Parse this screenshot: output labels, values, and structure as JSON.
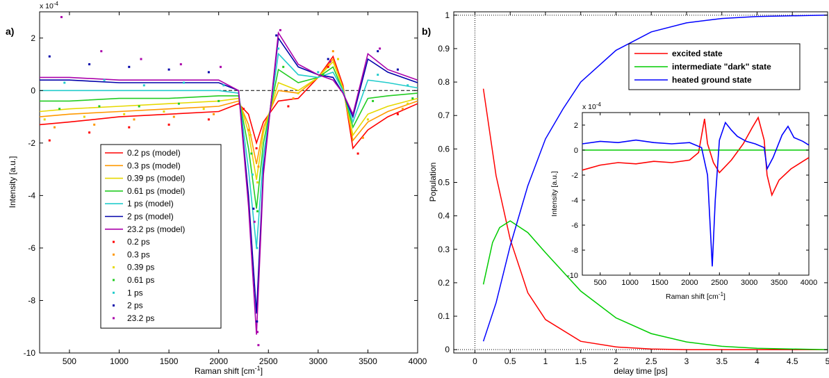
{
  "panel_a": {
    "label": "a)",
    "exponent": "x 10",
    "exponent_power": "-4",
    "xlabel": "Raman shift [cm",
    "xlabel_unit_sup": "-1",
    "xlabel_close": "]",
    "ylabel": "Intensity [a.u.]"
  },
  "panel_b": {
    "label": "b)",
    "xlabel": "delay time [ps]",
    "ylabel": "Population"
  },
  "inset": {
    "exponent": "x 10",
    "exponent_power": "-4",
    "xlabel": "Raman shift [cm",
    "xlabel_unit_sup": "-1",
    "xlabel_close": "]",
    "ylabel": "Intensity [a.u.]"
  },
  "colors": {
    "0.2": "#ff0000",
    "0.3": "#ff9900",
    "0.39": "#e6d800",
    "0.61": "#22cc22",
    "1": "#22cccc",
    "2": "#0000aa",
    "23.2": "#aa00aa",
    "excited": "#ff0000",
    "dark": "#00cc00",
    "ground": "#0000ff"
  },
  "chart_data": [
    {
      "type": "line",
      "panel": "a)",
      "xlabel": "Raman shift [cm-1]",
      "ylabel": "Intensity [a.u.]",
      "y_scale_note": "x 10^-4",
      "xlim": [
        200,
        4000
      ],
      "ylim": [
        -10,
        3
      ],
      "xticks": [
        "500",
        "1000",
        "1500",
        "2000",
        "2500",
        "3000",
        "3500",
        "4000"
      ],
      "yticks": [
        "-10",
        "-8",
        "-6",
        "-4",
        "-2",
        "0",
        "2"
      ],
      "legend_location": "center-left",
      "legend": [
        "0.2 ps (model)",
        "0.3 ps (model)",
        "0.39 ps (model)",
        "0.61 ps (model)",
        "1 ps (model)",
        "2 ps (model)",
        "23.2 ps (model)",
        "0.2 ps",
        "0.3 ps",
        "0.39 ps",
        "0.61 ps",
        "1 ps",
        "2 ps",
        "23.2 ps"
      ],
      "series": [
        {
          "name": "0.2 ps (model)",
          "color_key": "0.2",
          "x": [
            200,
            500,
            1000,
            1500,
            2000,
            2200,
            2300,
            2380,
            2450,
            2600,
            2800,
            3000,
            3150,
            3250,
            3350,
            3500,
            3700,
            4000
          ],
          "y": [
            -1.3,
            -1.2,
            -1.0,
            -0.9,
            -0.8,
            -0.5,
            -0.9,
            -2.0,
            -1.2,
            -0.4,
            -0.3,
            0.5,
            1.3,
            0.2,
            -2.2,
            -1.5,
            -1.0,
            -0.5
          ]
        },
        {
          "name": "0.3 ps (model)",
          "color_key": "0.3",
          "x": [
            200,
            500,
            1000,
            1500,
            2000,
            2200,
            2300,
            2380,
            2450,
            2600,
            2800,
            3000,
            3150,
            3250,
            3350,
            3500,
            3700,
            4000
          ],
          "y": [
            -1.0,
            -0.9,
            -0.8,
            -0.7,
            -0.6,
            -0.4,
            -1.3,
            -2.8,
            -1.4,
            0.0,
            -0.1,
            0.5,
            1.2,
            0.1,
            -1.9,
            -1.2,
            -0.8,
            -0.4
          ]
        },
        {
          "name": "0.39 ps (model)",
          "color_key": "0.39",
          "x": [
            200,
            500,
            1000,
            1500,
            2000,
            2200,
            2300,
            2380,
            2450,
            2600,
            2800,
            3000,
            3150,
            3250,
            3350,
            3500,
            3700,
            4000
          ],
          "y": [
            -0.8,
            -0.7,
            -0.6,
            -0.5,
            -0.4,
            -0.3,
            -1.6,
            -3.4,
            -1.6,
            0.3,
            0.0,
            0.5,
            1.1,
            0.1,
            -1.7,
            -0.9,
            -0.6,
            -0.3
          ]
        },
        {
          "name": "0.61 ps (model)",
          "color_key": "0.61",
          "x": [
            200,
            500,
            1000,
            1500,
            2000,
            2200,
            2300,
            2380,
            2450,
            2600,
            2800,
            3000,
            3150,
            3250,
            3350,
            3500,
            3700,
            4000
          ],
          "y": [
            -0.4,
            -0.4,
            -0.3,
            -0.3,
            -0.2,
            -0.2,
            -2.2,
            -4.5,
            -2.0,
            0.8,
            0.3,
            0.5,
            0.9,
            0.0,
            -1.4,
            -0.3,
            -0.2,
            -0.1
          ]
        },
        {
          "name": "1 ps (model)",
          "color_key": "1",
          "x": [
            200,
            500,
            1000,
            1500,
            2000,
            2200,
            2300,
            2380,
            2450,
            2600,
            2800,
            3000,
            3150,
            3250,
            3350,
            3500,
            3700,
            4000
          ],
          "y": [
            0.0,
            0.0,
            0.0,
            0.0,
            0.0,
            -0.1,
            -3.0,
            -6.0,
            -2.5,
            1.4,
            0.6,
            0.5,
            0.7,
            0.0,
            -1.2,
            0.4,
            0.3,
            0.1
          ]
        },
        {
          "name": "2 ps (model)",
          "color_key": "2",
          "x": [
            200,
            500,
            1000,
            1500,
            2000,
            2200,
            2300,
            2380,
            2450,
            2600,
            2800,
            3000,
            3150,
            3250,
            3350,
            3500,
            3700,
            4000
          ],
          "y": [
            0.4,
            0.4,
            0.3,
            0.3,
            0.3,
            0.0,
            -4.0,
            -8.5,
            -3.0,
            2.0,
            0.9,
            0.6,
            0.5,
            -0.1,
            -1.0,
            1.2,
            0.7,
            0.3
          ]
        },
        {
          "name": "23.2 ps (model)",
          "color_key": "23.2",
          "x": [
            200,
            500,
            1000,
            1500,
            2000,
            2200,
            2300,
            2380,
            2450,
            2600,
            2800,
            3000,
            3150,
            3250,
            3350,
            3500,
            3700,
            4000
          ],
          "y": [
            0.5,
            0.5,
            0.4,
            0.4,
            0.4,
            0.0,
            -4.4,
            -9.3,
            -3.2,
            2.2,
            1.0,
            0.6,
            0.4,
            -0.1,
            -0.9,
            1.4,
            0.8,
            0.4
          ]
        }
      ],
      "points": [
        {
          "name": "0.2 ps",
          "color_key": "0.2",
          "x": [
            300,
            700,
            1100,
            1500,
            1900,
            2250,
            2380,
            2700,
            3100,
            3400,
            3800
          ],
          "y": [
            -1.9,
            -1.6,
            -1.4,
            -1.3,
            -1.1,
            -0.7,
            -2.2,
            -0.6,
            0.9,
            -2.4,
            -0.9
          ]
        },
        {
          "name": "0.3 ps",
          "color_key": "0.3",
          "x": [
            350,
            750,
            1150,
            1550,
            1950,
            2300,
            2400,
            2750,
            3150,
            3450,
            3850
          ],
          "y": [
            -1.4,
            -1.3,
            -1.1,
            -1.0,
            -0.9,
            -1.5,
            -2.9,
            -0.3,
            1.5,
            -1.8,
            -0.7
          ]
        },
        {
          "name": "0.39 ps",
          "color_key": "0.39",
          "x": [
            250,
            650,
            1050,
            1450,
            1850,
            2320,
            2390,
            2800,
            3200,
            3500,
            3900
          ],
          "y": [
            -1.1,
            -1.0,
            -0.9,
            -0.8,
            -0.7,
            -1.7,
            -3.5,
            -0.1,
            1.2,
            -1.1,
            -0.5
          ]
        },
        {
          "name": "0.61 ps",
          "color_key": "0.61",
          "x": [
            400,
            800,
            1200,
            1600,
            2000,
            2330,
            2390,
            2650,
            3050,
            3550,
            3950
          ],
          "y": [
            -0.7,
            -0.6,
            -0.6,
            -0.5,
            -0.4,
            -2.4,
            -4.6,
            0.9,
            0.6,
            -0.4,
            -0.3
          ]
        },
        {
          "name": "1 ps",
          "color_key": "1",
          "x": [
            450,
            850,
            1250,
            1650,
            2050,
            2340,
            2385,
            2600,
            3000,
            3600,
            3900
          ],
          "y": [
            0.3,
            0.4,
            0.2,
            0.3,
            0.2,
            -3.2,
            -6.0,
            1.6,
            0.7,
            0.6,
            0.2
          ]
        },
        {
          "name": "2 ps",
          "color_key": "2",
          "x": [
            300,
            700,
            1100,
            1500,
            1900,
            2350,
            2385,
            2580,
            3100,
            3600,
            3800
          ],
          "y": [
            1.3,
            1.0,
            0.9,
            0.8,
            0.7,
            -4.5,
            -8.8,
            2.1,
            1.2,
            1.5,
            0.8
          ]
        },
        {
          "name": "23.2 ps",
          "color_key": "23.2",
          "x": [
            420,
            820,
            1220,
            1620,
            2020,
            2360,
            2390,
            2400,
            2620,
            3120,
            3620
          ],
          "y": [
            2.8,
            1.5,
            1.2,
            1.0,
            0.9,
            -5.0,
            -9.2,
            -9.7,
            2.3,
            1.1,
            1.6
          ]
        }
      ]
    },
    {
      "type": "line",
      "panel": "b)",
      "xlabel": "delay time [ps]",
      "ylabel": "Population",
      "xlim": [
        -0.3,
        5
      ],
      "ylim": [
        -0.01,
        1.01
      ],
      "xticks": [
        "0",
        "0.5",
        "1",
        "1.5",
        "2",
        "2.5",
        "3",
        "3.5",
        "4",
        "4.5",
        "5"
      ],
      "yticks": [
        "0",
        "0.1",
        "0.2",
        "0.3",
        "0.4",
        "0.5",
        "0.6",
        "0.7",
        "0.8",
        "0.9",
        "1"
      ],
      "legend_location": "top-right",
      "series": [
        {
          "name": "excited state",
          "color_key": "excited",
          "x": [
            0.12,
            0.3,
            0.5,
            0.75,
            1.0,
            1.5,
            2.0,
            2.5,
            3.0,
            4.0,
            5.0
          ],
          "y": [
            0.78,
            0.52,
            0.33,
            0.17,
            0.09,
            0.025,
            0.008,
            0.002,
            0.0,
            0.0,
            0.0
          ]
        },
        {
          "name": "intermediate \"dark\" state",
          "color_key": "dark",
          "x": [
            0.12,
            0.25,
            0.35,
            0.5,
            0.75,
            1.0,
            1.5,
            2.0,
            2.5,
            3.0,
            3.5,
            4.0,
            5.0
          ],
          "y": [
            0.195,
            0.32,
            0.365,
            0.385,
            0.35,
            0.29,
            0.175,
            0.095,
            0.048,
            0.023,
            0.01,
            0.004,
            0.0
          ]
        },
        {
          "name": "heated ground state",
          "color_key": "ground",
          "x": [
            0.12,
            0.3,
            0.5,
            0.75,
            1.0,
            1.25,
            1.5,
            2.0,
            2.5,
            3.0,
            3.5,
            4.0,
            5.0
          ],
          "y": [
            0.025,
            0.14,
            0.31,
            0.49,
            0.63,
            0.72,
            0.8,
            0.895,
            0.95,
            0.977,
            0.99,
            0.996,
            1.0
          ]
        }
      ],
      "reference_lines": {
        "y": 1,
        "x": 0
      }
    },
    {
      "type": "line",
      "panel": "inset",
      "xlabel": "Raman shift [cm-1]",
      "ylabel": "Intensity [a.u.]",
      "y_scale_note": "x 10^-4",
      "xlim": [
        200,
        4000
      ],
      "ylim": [
        -10,
        3
      ],
      "xticks": [
        "500",
        "1000",
        "1500",
        "2000",
        "2500",
        "3000",
        "3500",
        "4000"
      ],
      "yticks": [
        "-10",
        "-8",
        "-6",
        "-4",
        "-2",
        "0",
        "2"
      ],
      "series": [
        {
          "name": "excited state",
          "color_key": "excited",
          "x": [
            200,
            500,
            800,
            1100,
            1400,
            1700,
            2000,
            2150,
            2250,
            2300,
            2400,
            2500,
            2700,
            2900,
            3050,
            3150,
            3250,
            3300,
            3380,
            3500,
            3700,
            3900,
            4000
          ],
          "y": [
            -1.6,
            -1.2,
            -1.0,
            -1.1,
            -0.9,
            -1.0,
            -0.8,
            -0.2,
            2.5,
            0.5,
            -1.0,
            -1.8,
            -0.8,
            0.5,
            1.8,
            2.6,
            0.8,
            -2.0,
            -3.6,
            -2.4,
            -1.5,
            -0.9,
            -0.6
          ]
        },
        {
          "name": "intermediate \"dark\" state",
          "color_key": "dark",
          "x": [
            200,
            4000
          ],
          "y": [
            0,
            0
          ]
        },
        {
          "name": "heated ground state",
          "color_key": "ground",
          "x": [
            200,
            500,
            800,
            1100,
            1400,
            1700,
            2000,
            2200,
            2300,
            2350,
            2380,
            2430,
            2500,
            2600,
            2700,
            2800,
            2950,
            3100,
            3250,
            3300,
            3400,
            3550,
            3650,
            3750,
            3900,
            4000
          ],
          "y": [
            0.5,
            0.7,
            0.6,
            0.8,
            0.6,
            0.5,
            0.6,
            0.2,
            -2.0,
            -6.5,
            -9.3,
            -4.0,
            0.8,
            2.2,
            1.6,
            1.1,
            0.7,
            0.5,
            0.2,
            -1.5,
            -0.6,
            1.2,
            1.9,
            1.0,
            0.7,
            0.4
          ]
        }
      ]
    }
  ]
}
